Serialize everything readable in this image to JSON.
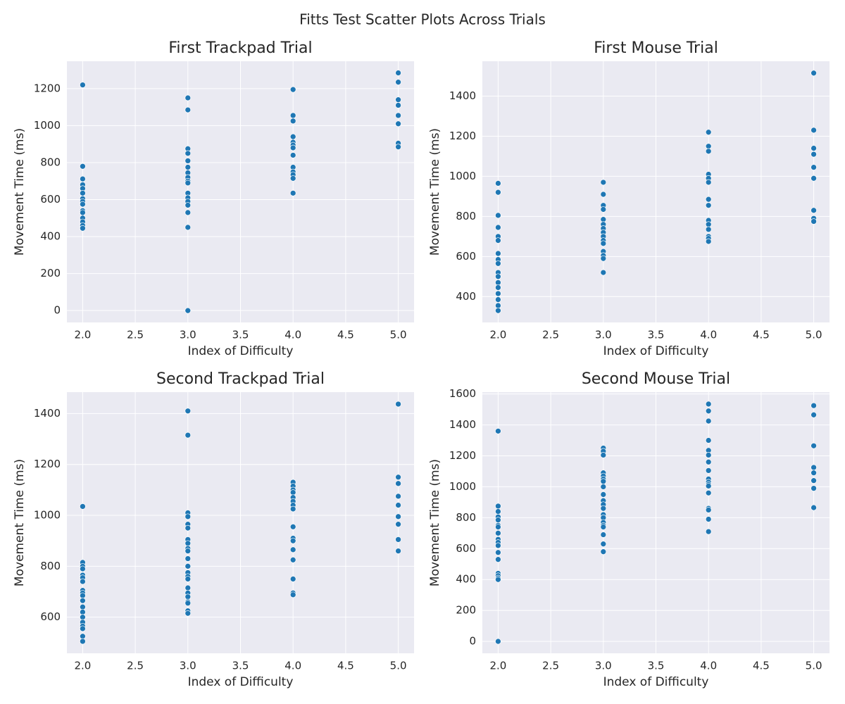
{
  "title": "Fitts Test Scatter Plots Across Trials",
  "chart_data": [
    {
      "type": "scatter",
      "title": "First Trackpad Trial",
      "xlabel": "Index of Difficulty",
      "ylabel": "Movement Time (ms)",
      "color": "#1f77b4",
      "grid": true,
      "x": [
        2,
        2,
        2,
        2,
        2,
        2,
        2,
        2,
        2,
        2,
        2,
        2,
        2,
        2,
        2,
        3,
        3,
        3,
        3,
        3,
        3,
        3,
        3,
        3,
        3,
        3,
        3,
        3,
        3,
        3,
        3,
        3,
        4,
        4,
        4,
        4,
        4,
        4,
        4,
        4,
        4,
        4,
        4,
        4,
        4,
        5,
        5,
        5,
        5,
        5,
        5,
        5,
        5
      ],
      "values": [
        1220,
        780,
        712,
        680,
        660,
        635,
        605,
        590,
        575,
        540,
        530,
        500,
        480,
        460,
        445,
        1150,
        1085,
        875,
        850,
        810,
        775,
        745,
        720,
        700,
        690,
        635,
        610,
        590,
        570,
        530,
        450,
        0,
        1195,
        1055,
        1025,
        940,
        910,
        895,
        880,
        840,
        775,
        750,
        735,
        715,
        635,
        1285,
        1235,
        1140,
        1110,
        1055,
        1010,
        905,
        885
      ],
      "xlim": [
        1.85,
        5.15
      ],
      "ylim": [
        -64,
        1348
      ],
      "xticks": [
        {
          "value": 2,
          "label": "2.0"
        },
        {
          "value": 2.5,
          "label": "2.5"
        },
        {
          "value": 3,
          "label": "3.0"
        },
        {
          "value": 3.5,
          "label": "3.5"
        },
        {
          "value": 4,
          "label": "4.0"
        },
        {
          "value": 4.5,
          "label": "4.5"
        },
        {
          "value": 5,
          "label": "5.0"
        }
      ],
      "yticks": [
        0,
        200,
        400,
        600,
        800,
        1000,
        1200
      ]
    },
    {
      "type": "scatter",
      "title": "First Mouse Trial",
      "xlabel": "Index of Difficulty",
      "ylabel": "Movement Time (ms)",
      "color": "#1f77b4",
      "grid": true,
      "x": [
        2,
        2,
        2,
        2,
        2,
        2,
        2,
        2,
        2,
        2,
        2,
        2,
        2,
        2,
        2,
        2,
        2,
        3,
        3,
        3,
        3,
        3,
        3,
        3,
        3,
        3,
        3,
        3,
        3,
        3,
        3,
        3,
        4,
        4,
        4,
        4,
        4,
        4,
        4,
        4,
        4,
        4,
        4,
        4,
        4,
        4,
        5,
        5,
        5,
        5,
        5,
        5,
        5,
        5,
        5
      ],
      "values": [
        965,
        920,
        805,
        745,
        700,
        680,
        615,
        585,
        565,
        520,
        500,
        470,
        445,
        415,
        385,
        355,
        330,
        970,
        910,
        855,
        835,
        785,
        760,
        740,
        720,
        700,
        680,
        665,
        625,
        605,
        590,
        520,
        1220,
        1150,
        1125,
        1010,
        990,
        970,
        885,
        855,
        780,
        760,
        735,
        700,
        690,
        675,
        1515,
        1230,
        1140,
        1110,
        1045,
        990,
        830,
        790,
        775
      ],
      "xlim": [
        1.85,
        5.15
      ],
      "ylim": [
        271,
        1574
      ],
      "xticks": [
        {
          "value": 2,
          "label": "2.0"
        },
        {
          "value": 2.5,
          "label": "2.5"
        },
        {
          "value": 3,
          "label": "3.0"
        },
        {
          "value": 3.5,
          "label": "3.5"
        },
        {
          "value": 4,
          "label": "4.0"
        },
        {
          "value": 4.5,
          "label": "4.5"
        },
        {
          "value": 5,
          "label": "5.0"
        }
      ],
      "yticks": [
        400,
        600,
        800,
        1000,
        1200,
        1400
      ]
    },
    {
      "type": "scatter",
      "title": "Second Trackpad Trial",
      "xlabel": "Index of Difficulty",
      "ylabel": "Movement Time (ms)",
      "color": "#1f77b4",
      "grid": true,
      "x": [
        2,
        2,
        2,
        2,
        2,
        2,
        2,
        2,
        2,
        2,
        2,
        2,
        2,
        2,
        2,
        2,
        2,
        2,
        2,
        3,
        3,
        3,
        3,
        3,
        3,
        3,
        3,
        3,
        3,
        3,
        3,
        3,
        3,
        3,
        3,
        3,
        3,
        3,
        3,
        3,
        3,
        4,
        4,
        4,
        4,
        4,
        4,
        4,
        4,
        4,
        4,
        4,
        4,
        4,
        4,
        4,
        4,
        5,
        5,
        5,
        5,
        5,
        5,
        5,
        5,
        5
      ],
      "values": [
        1035,
        815,
        800,
        790,
        765,
        755,
        740,
        705,
        695,
        685,
        665,
        640,
        620,
        600,
        580,
        565,
        555,
        525,
        505,
        1410,
        1315,
        1010,
        995,
        965,
        950,
        905,
        890,
        870,
        860,
        830,
        800,
        775,
        760,
        750,
        715,
        695,
        680,
        660,
        655,
        625,
        615,
        1130,
        1115,
        1100,
        1090,
        1070,
        1055,
        1040,
        1025,
        955,
        910,
        900,
        865,
        825,
        750,
        695,
        688,
        1437,
        1150,
        1125,
        1075,
        1040,
        995,
        965,
        905,
        860
      ],
      "xlim": [
        1.85,
        5.15
      ],
      "ylim": [
        458,
        1484
      ],
      "xticks": [
        {
          "value": 2,
          "label": "2.0"
        },
        {
          "value": 2.5,
          "label": "2.5"
        },
        {
          "value": 3,
          "label": "3.0"
        },
        {
          "value": 3.5,
          "label": "3.5"
        },
        {
          "value": 4,
          "label": "4.0"
        },
        {
          "value": 4.5,
          "label": "4.5"
        },
        {
          "value": 5,
          "label": "5.0"
        }
      ],
      "yticks": [
        600,
        800,
        1000,
        1200,
        1400
      ]
    },
    {
      "type": "scatter",
      "title": "Second Mouse Trial",
      "xlabel": "Index of Difficulty",
      "ylabel": "Movement Time (ms)",
      "color": "#1f77b4",
      "grid": true,
      "x": [
        2,
        2,
        2,
        2,
        2,
        2,
        2,
        2,
        2,
        2,
        2,
        2,
        2,
        2,
        2,
        2,
        2,
        2,
        3,
        3,
        3,
        3,
        3,
        3,
        3,
        3,
        3,
        3,
        3,
        3,
        3,
        3,
        3,
        3,
        3,
        3,
        3,
        3,
        4,
        4,
        4,
        4,
        4,
        4,
        4,
        4,
        4,
        4,
        4,
        4,
        4,
        4,
        4,
        4,
        4,
        5,
        5,
        5,
        5,
        5,
        5,
        5,
        5
      ],
      "values": [
        1360,
        875,
        840,
        805,
        785,
        750,
        740,
        700,
        660,
        640,
        620,
        575,
        530,
        440,
        425,
        410,
        400,
        0,
        1250,
        1230,
        1205,
        1090,
        1070,
        1050,
        1035,
        1000,
        950,
        910,
        885,
        860,
        820,
        800,
        770,
        750,
        740,
        690,
        630,
        580,
        1535,
        1490,
        1425,
        1300,
        1235,
        1205,
        1160,
        1105,
        1050,
        1030,
        1015,
        1005,
        960,
        860,
        850,
        790,
        710,
        1525,
        1465,
        1265,
        1125,
        1090,
        1040,
        990,
        865
      ],
      "xlim": [
        1.85,
        5.15
      ],
      "ylim": [
        -77,
        1612
      ],
      "xticks": [
        {
          "value": 2,
          "label": "2.0"
        },
        {
          "value": 2.5,
          "label": "2.5"
        },
        {
          "value": 3,
          "label": "3.0"
        },
        {
          "value": 3.5,
          "label": "3.5"
        },
        {
          "value": 4,
          "label": "4.0"
        },
        {
          "value": 4.5,
          "label": "4.5"
        },
        {
          "value": 5,
          "label": "5.0"
        }
      ],
      "yticks": [
        0,
        200,
        400,
        600,
        800,
        1000,
        1200,
        1400,
        1600
      ]
    }
  ]
}
